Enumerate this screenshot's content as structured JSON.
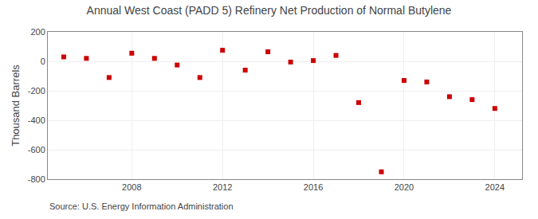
{
  "chart_data": {
    "type": "scatter",
    "title": "Annual West Coast (PADD 5) Refinery Net Production of Normal Butylene",
    "y_label": "Thousand Barrels",
    "annotations": [
      "Source: U.S. Energy Information Administration"
    ],
    "x": [
      2005,
      2006,
      2007,
      2008,
      2009,
      2010,
      2011,
      2012,
      2013,
      2014,
      2015,
      2016,
      2017,
      2018,
      2019,
      2020,
      2021,
      2022,
      2023,
      2024
    ],
    "values": [
      30,
      20,
      -110,
      55,
      20,
      -25,
      -110,
      75,
      -60,
      65,
      -5,
      5,
      40,
      -280,
      -750,
      -130,
      -140,
      -240,
      -260,
      -320
    ],
    "color": "#cc0000",
    "marker": "square",
    "xlim": [
      2004.3,
      2025.2
    ],
    "xticks": [
      2008,
      2012,
      2016,
      2020,
      2024
    ],
    "ylim": [
      -800,
      200
    ],
    "yticks": [
      -800,
      -600,
      -400,
      -200,
      0,
      200
    ],
    "grid": true
  }
}
